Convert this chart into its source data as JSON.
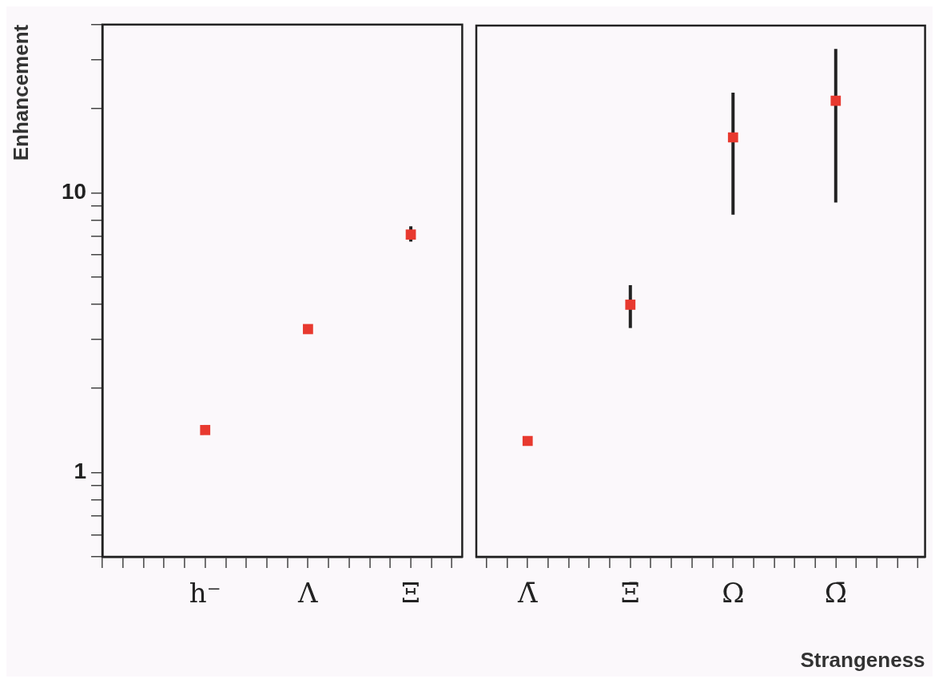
{
  "chart_data": [
    {
      "type": "scatter",
      "ylabel": "Enhancement",
      "categories": [
        "h⁻",
        "Λ",
        "Ξ"
      ],
      "series": [
        {
          "color": "#e8392f",
          "values": [
            1.42,
            3.26,
            7.1
          ],
          "errors": [
            null,
            null,
            [
              6.7,
              7.6
            ]
          ]
        }
      ],
      "ylim": [
        0.5,
        40
      ],
      "yticks": [
        {
          "value": 0.5,
          "label": null
        },
        {
          "value": 0.6,
          "label": null
        },
        {
          "value": 0.7,
          "label": null
        },
        {
          "value": 0.8,
          "label": null
        },
        {
          "value": 0.9,
          "label": null
        },
        1,
        {
          "value": 2,
          "label": null
        },
        {
          "value": 3,
          "label": null
        },
        {
          "value": 4,
          "label": null
        },
        {
          "value": 5,
          "label": null
        },
        {
          "value": 6,
          "label": null
        },
        {
          "value": 7,
          "label": null
        },
        {
          "value": 8,
          "label": null
        },
        {
          "value": 9,
          "label": null
        },
        10,
        {
          "value": 20,
          "label": null
        },
        {
          "value": 30,
          "label": null
        },
        {
          "value": 40,
          "label": null
        }
      ],
      "log": "y",
      "grid": false,
      "legend": false,
      "marker": "square"
    },
    {
      "type": "scatter",
      "xlabel": "Strangeness",
      "categories": [
        "Λ̄",
        "Ξ̄",
        "Ω",
        "Ω̄"
      ],
      "series": [
        {
          "color": "#e8392f",
          "values": [
            1.3,
            4.0,
            15.9,
            21.5
          ],
          "errors": [
            null,
            [
              3.3,
              4.7
            ],
            [
              8.4,
              23
            ],
            [
              9.3,
              33
            ]
          ]
        }
      ],
      "ylim": [
        0.5,
        40
      ],
      "log": "y",
      "grid": false,
      "legend": false,
      "marker": "square",
      "tick_labels": "x"
    }
  ]
}
